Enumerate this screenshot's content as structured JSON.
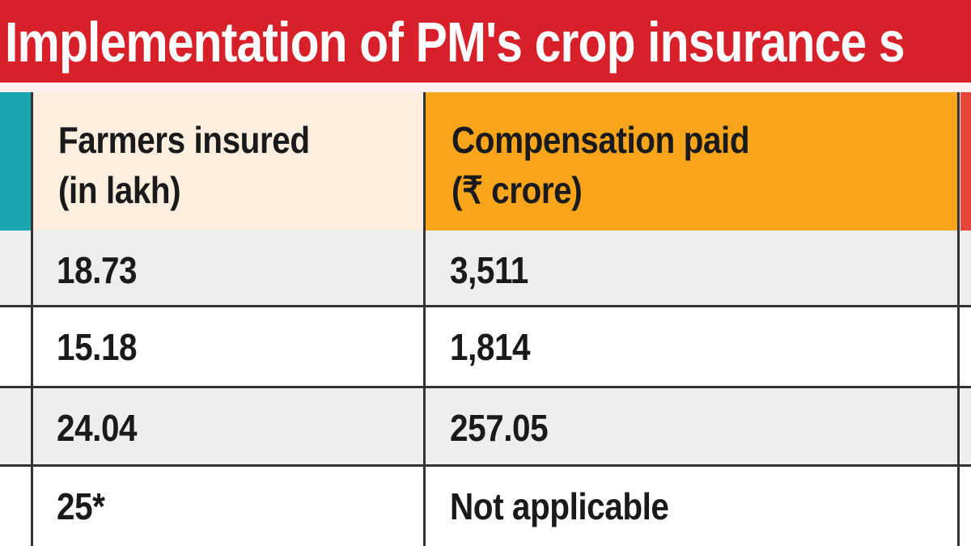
{
  "title": "Implementation of PM's crop insurance s",
  "colors": {
    "banner": "#d8202a",
    "teal": "#1aa6b0",
    "header_col1": "#fcefe0",
    "header_col2": "#f8a51c",
    "row_shade": "#eceef0",
    "edge_red": "#e8453a"
  },
  "chart_data": {
    "type": "table",
    "columns": [
      "Farmers insured (in lakh)",
      "Compensation paid (₹ crore)"
    ],
    "header_lines": [
      [
        "Farmers insured",
        "(in lakh)"
      ],
      [
        "Compensation paid",
        "(₹ crore)"
      ]
    ],
    "rows": [
      [
        "18.73",
        "3,511"
      ],
      [
        "15.18",
        "1,814"
      ],
      [
        "24.04",
        "257.05"
      ],
      [
        "25*",
        "Not applicable"
      ]
    ]
  }
}
